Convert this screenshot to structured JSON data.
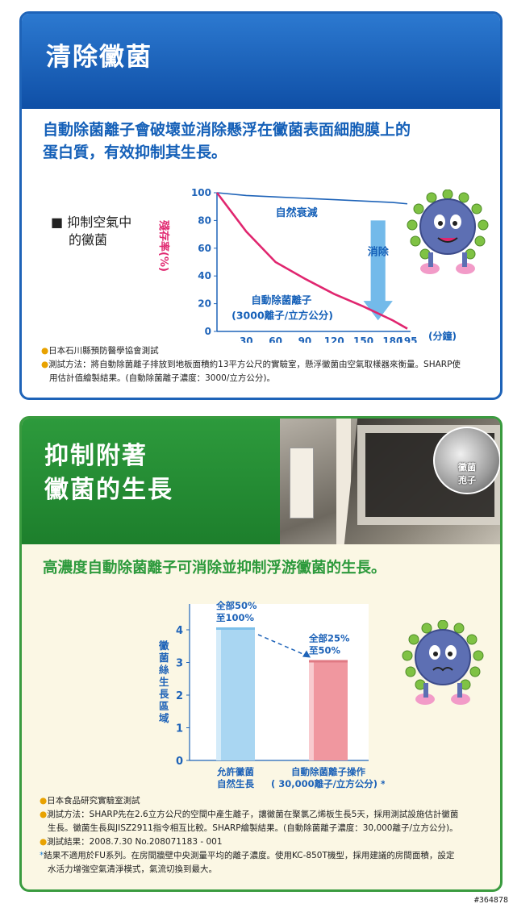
{
  "section1": {
    "title": "清除黴菌",
    "headline_line1": "自動除菌離子會破壞並消除懸浮在黴菌表面細胞膜上的",
    "headline_line2": "蛋白質，有效抑制其生長。",
    "bullet_label_line1": "■ 抑制空氣中",
    "bullet_label_line2": "的黴菌",
    "chart": {
      "type": "line",
      "ylabel": "殘存率(%)",
      "x_unit": "(分鐘)",
      "x_ticks": [
        "30",
        "60",
        "90",
        "120",
        "150",
        "180",
        "195"
      ],
      "y_ticks": [
        "100",
        "80",
        "60",
        "40",
        "20",
        "0"
      ],
      "series_natural_label": "自然衰減",
      "series_ion_label_line1": "自動除菌離子",
      "series_ion_label_line2": "(3000離子/立方公分)",
      "arrow_label": "消除"
    },
    "notes": [
      "日本石川縣預防醫學協會測試",
      "測試方法：將自動除菌離子排放到地板面積約13平方公尺的實驗室，懸浮黴菌由空氣取樣器來衡量。SHARP使",
      "用估計值繪製結果。(自動除菌離子濃度：3000/立方公分)。"
    ]
  },
  "section2": {
    "title_line1": "抑制附著",
    "title_line2": "黴菌的生長",
    "photo_label_line1": "黴菌",
    "photo_label_line2": "孢子",
    "headline": "高濃度自動除菌離子可消除並抑制浮游黴菌的生長。",
    "chart": {
      "type": "bar",
      "ylabel": "黴菌絲生長區域",
      "y_ticks": [
        "4",
        "3",
        "2",
        "1",
        "0"
      ],
      "bar1_top_line1": "全部50%",
      "bar1_top_line2": "至100%",
      "bar2_top_line1": "全部25%",
      "bar2_top_line2": "至50%",
      "cat1_line1": "允許黴菌",
      "cat1_line2": "自然生長",
      "cat2_line1": "自動除菌離子操作",
      "cat2_line2": "( 30,000離子/立方公分) *"
    },
    "notes": [
      "日本食品研究實驗室測試",
      "測試方法：SHARP先在2.6立方公尺的空間中產生離子，讓黴菌在聚氯乙烯板生長5天，採用測試設施估計黴菌",
      "生長。黴菌生長與JISZ2911指令相互比較。SHARP繪製結果。(自動除菌離子濃度：30,000離子/立方公分)。",
      "測試結果：2008.7.30 No.208071183 - 001",
      "結果不適用於FU系列。在房間牆壁中央測量平均的離子濃度。使用KC-850T機型，採用建議的房間面積，設定",
      "水活力增強空氣清淨模式，氣流切換到最大。"
    ]
  },
  "chart_data": [
    {
      "type": "line",
      "ylabel": "殘存率(%)",
      "xlabel": "(分鐘)",
      "ylim": [
        0,
        100
      ],
      "xlim": [
        0,
        195
      ],
      "series": [
        {
          "name": "自然衰減",
          "x": [
            0,
            30,
            60,
            90,
            120,
            150,
            180,
            195
          ],
          "values": [
            100,
            98,
            97,
            96,
            95,
            94,
            93,
            92
          ]
        },
        {
          "name": "自動除菌離子",
          "x": [
            0,
            30,
            60,
            90,
            120,
            150,
            180,
            195
          ],
          "values": [
            100,
            72,
            50,
            38,
            27,
            18,
            8,
            2
          ]
        }
      ]
    },
    {
      "type": "bar",
      "ylabel": "黴菌絲生長區域",
      "ylim": [
        0,
        4
      ],
      "categories": [
        "允許黴菌自然生長",
        "自動除菌離子操作"
      ],
      "values": [
        4,
        3
      ]
    }
  ],
  "footer_id": "#364878",
  "colors": {
    "blue": "#1e63b8",
    "green": "#3a9b3f",
    "pink": "#e0266f",
    "bar_blue": "#a9d6f2",
    "bar_pink": "#f0979f"
  }
}
